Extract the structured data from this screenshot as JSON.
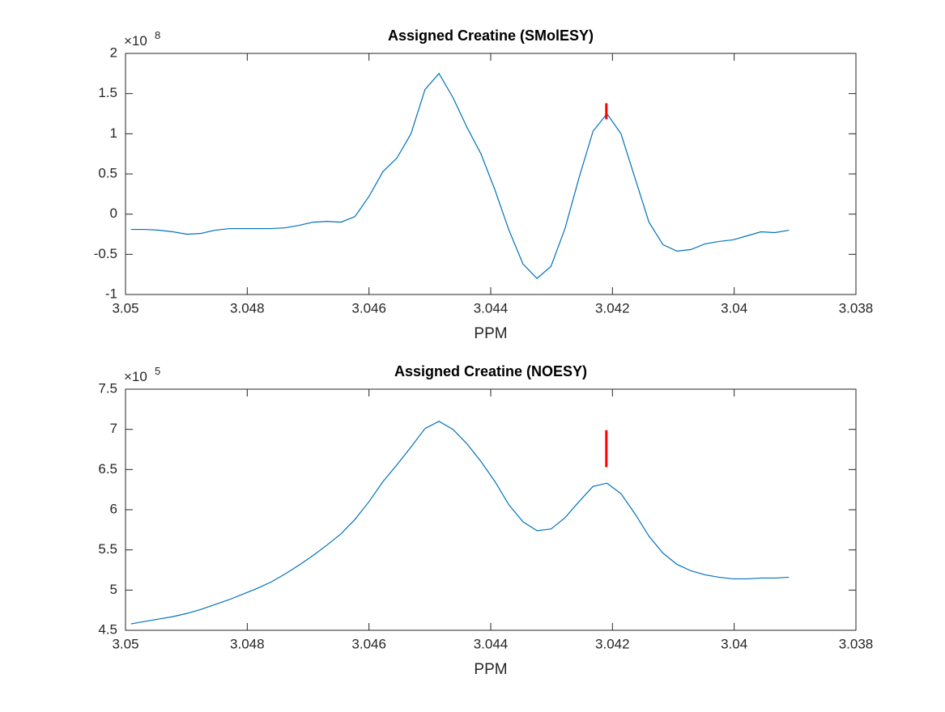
{
  "chart_data": [
    {
      "type": "line",
      "title": "Assigned Creatine (SMolESY)",
      "xlabel": "PPM",
      "y_multiplier": {
        "base": "×10",
        "exponent": "8"
      },
      "xlim": [
        3.05,
        3.038
      ],
      "xticks": [
        3.05,
        3.048,
        3.046,
        3.044,
        3.042,
        3.04,
        3.038
      ],
      "ylim": [
        -1,
        2
      ],
      "yticks": [
        -1,
        -0.5,
        0,
        0.5,
        1,
        1.5,
        2
      ],
      "x": [
        3.04991,
        3.04968,
        3.04945,
        3.04922,
        3.04899,
        3.04876,
        3.04853,
        3.0483,
        3.04807,
        3.04784,
        3.04761,
        3.04738,
        3.04715,
        3.04692,
        3.04669,
        3.04646,
        3.04623,
        3.046,
        3.04577,
        3.04554,
        3.04531,
        3.04508,
        3.04485,
        3.04462,
        3.04439,
        3.04416,
        3.04393,
        3.0437,
        3.04347,
        3.04324,
        3.04301,
        3.04278,
        3.04255,
        3.04232,
        3.04209,
        3.04186,
        3.04163,
        3.0414,
        3.04117,
        3.04094,
        3.04071,
        3.04048,
        3.04025,
        3.04002,
        3.03979,
        3.03956,
        3.03933,
        3.0391
      ],
      "color": "#0072bd",
      "values": [
        -0.19,
        -0.19,
        -0.2,
        -0.22,
        -0.25,
        -0.24,
        -0.2,
        -0.18,
        -0.18,
        -0.18,
        -0.18,
        -0.17,
        -0.14,
        -0.1,
        -0.09,
        -0.1,
        -0.03,
        0.22,
        0.53,
        0.7,
        1.0,
        1.55,
        1.75,
        1.45,
        1.08,
        0.75,
        0.3,
        -0.2,
        -0.62,
        -0.8,
        -0.65,
        -0.18,
        0.45,
        1.03,
        1.25,
        1.0,
        0.45,
        -0.1,
        -0.38,
        -0.46,
        -0.44,
        -0.37,
        -0.34,
        -0.32,
        -0.27,
        -0.22,
        -0.23,
        -0.2
      ],
      "marker": {
        "x": 3.0421,
        "y": [
          1.18,
          1.38
        ],
        "color": "#ff0000"
      }
    },
    {
      "type": "line",
      "title": "Assigned Creatine (NOESY)",
      "xlabel": "PPM",
      "y_multiplier": {
        "base": "×10",
        "exponent": "5"
      },
      "xlim": [
        3.05,
        3.038
      ],
      "xticks": [
        3.05,
        3.048,
        3.046,
        3.044,
        3.042,
        3.04,
        3.038
      ],
      "ylim": [
        4.5,
        7.5
      ],
      "yticks": [
        4.5,
        5,
        5.5,
        6,
        6.5,
        7,
        7.5
      ],
      "x": [
        3.04991,
        3.04968,
        3.04945,
        3.04922,
        3.04899,
        3.04876,
        3.04853,
        3.0483,
        3.04807,
        3.04784,
        3.04761,
        3.04738,
        3.04715,
        3.04692,
        3.04669,
        3.04646,
        3.04623,
        3.046,
        3.04577,
        3.04554,
        3.04531,
        3.04508,
        3.04485,
        3.04462,
        3.04439,
        3.04416,
        3.04393,
        3.0437,
        3.04347,
        3.04324,
        3.04301,
        3.04278,
        3.04255,
        3.04232,
        3.04209,
        3.04186,
        3.04163,
        3.0414,
        3.04117,
        3.04094,
        3.04071,
        3.04048,
        3.04025,
        3.04002,
        3.03979,
        3.03956,
        3.03933,
        3.0391
      ],
      "color": "#0072bd",
      "values": [
        4.58,
        4.61,
        4.64,
        4.67,
        4.71,
        4.76,
        4.82,
        4.88,
        4.95,
        5.02,
        5.1,
        5.2,
        5.31,
        5.43,
        5.56,
        5.7,
        5.88,
        6.1,
        6.35,
        6.56,
        6.78,
        7.01,
        7.1,
        7.0,
        6.82,
        6.6,
        6.35,
        6.06,
        5.85,
        5.74,
        5.76,
        5.9,
        6.1,
        6.29,
        6.33,
        6.2,
        5.95,
        5.67,
        5.46,
        5.32,
        5.24,
        5.19,
        5.16,
        5.14,
        5.14,
        5.15,
        5.15,
        5.16
      ],
      "marker": {
        "x": 3.0421,
        "y": [
          6.53,
          6.99
        ],
        "color": "#ff0000"
      }
    }
  ]
}
